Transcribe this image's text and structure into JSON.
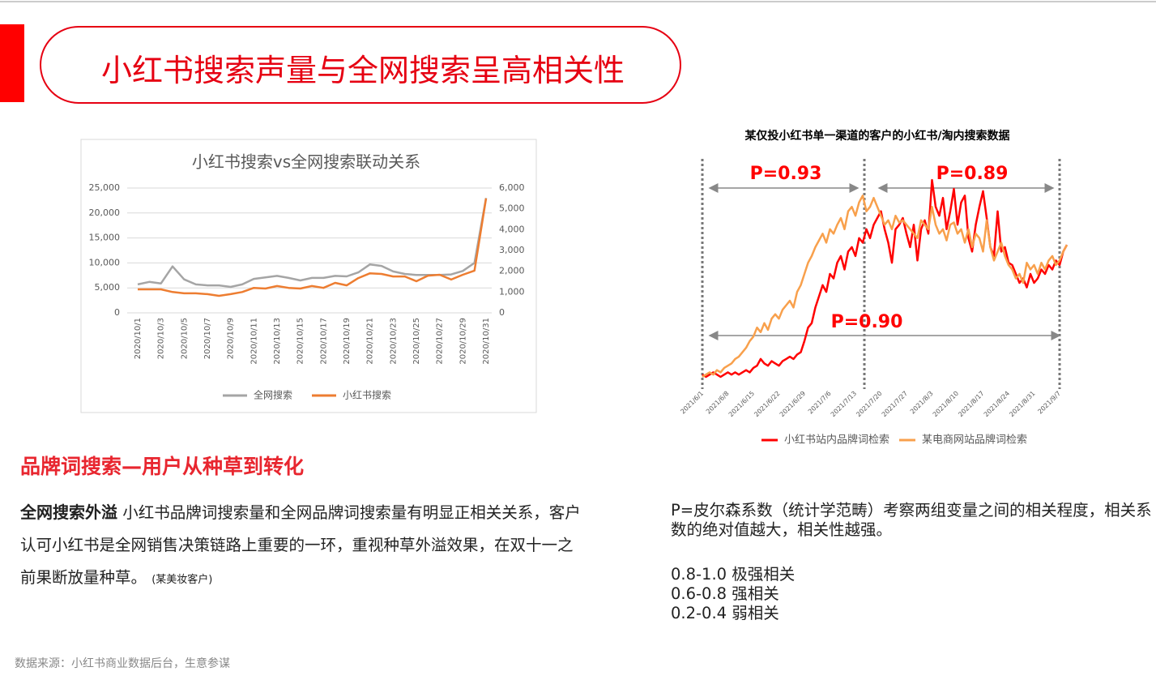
{
  "header": {
    "title": "小红书搜索声量与全网搜索呈高相关性"
  },
  "chart_data": [
    {
      "type": "line",
      "title": "小红书搜索vs全网搜索联动关系",
      "categories": [
        "2020/10/1",
        null,
        "2020/10/3",
        null,
        "2020/10/5",
        null,
        "2020/10/7",
        null,
        "2020/10/9",
        null,
        "2020/10/11",
        null,
        "2020/10/13",
        null,
        "2020/10/15",
        null,
        "2020/10/17",
        null,
        "2020/10/19",
        null,
        "2020/10/21",
        null,
        "2020/10/23",
        null,
        "2020/10/25",
        null,
        "2020/10/27",
        null,
        "2020/10/29",
        null,
        "2020/10/31"
      ],
      "series": [
        {
          "name": "全网搜索",
          "color": "#a5a5a5",
          "values": [
            5700,
            6200,
            5900,
            9300,
            6700,
            5700,
            5500,
            5500,
            5200,
            5700,
            6800,
            7100,
            7400,
            7000,
            6500,
            7000,
            7000,
            7400,
            7300,
            8100,
            9700,
            9400,
            8300,
            7800,
            7600,
            7600,
            7600,
            7700,
            8400,
            10000,
            23000
          ]
        },
        {
          "name": "小红书搜索",
          "color": "#ed7d31",
          "axis": "y2",
          "values": [
            1130,
            1130,
            1130,
            1000,
            940,
            940,
            900,
            820,
            900,
            1000,
            1200,
            1170,
            1290,
            1200,
            1170,
            1290,
            1200,
            1440,
            1320,
            1670,
            1900,
            1870,
            1750,
            1750,
            1520,
            1790,
            1830,
            1600,
            1830,
            2030,
            5500
          ]
        }
      ],
      "ylim": [
        0,
        25000
      ],
      "yticks": [
        0,
        {
          "value": 5000,
          "label": "5,000"
        },
        {
          "value": 10000,
          "label": "10,000"
        },
        {
          "value": 15000,
          "label": "15,000"
        },
        {
          "value": 20000,
          "label": "20,000"
        },
        {
          "value": 25000,
          "label": "25,000"
        }
      ],
      "y2lim": [
        0,
        6000
      ],
      "y2ticks": [
        0,
        {
          "value": 1000,
          "label": "1,000"
        },
        {
          "value": 2000,
          "label": "2,000"
        },
        {
          "value": 3000,
          "label": "3,000"
        },
        {
          "value": 4000,
          "label": "4,000"
        },
        {
          "value": 5000,
          "label": "5,000"
        },
        {
          "value": 6000,
          "label": "6,000"
        }
      ],
      "grid": true,
      "legend": "bottom"
    },
    {
      "type": "line",
      "title": "某仅投小红书单一渠道的客户的小红书/淘内搜索数据",
      "categories": [
        "2021/6/1",
        null,
        null,
        null,
        null,
        null,
        null,
        "2021/6/8",
        null,
        null,
        null,
        null,
        null,
        null,
        "2021/6/15",
        null,
        null,
        null,
        null,
        null,
        null,
        "2021/6/22",
        null,
        null,
        null,
        null,
        null,
        null,
        "2021/6/29",
        null,
        null,
        null,
        null,
        null,
        null,
        "2021/7/6",
        null,
        null,
        null,
        null,
        null,
        null,
        "2021/7/13",
        null,
        null,
        null,
        null,
        null,
        null,
        "2021/7/20",
        null,
        null,
        null,
        null,
        null,
        null,
        "2021/7/27",
        null,
        null,
        null,
        null,
        null,
        null,
        "2021/8/3",
        null,
        null,
        null,
        null,
        null,
        null,
        "2021/8/10",
        null,
        null,
        null,
        null,
        null,
        null,
        "2021/8/17",
        null,
        null,
        null,
        null,
        null,
        null,
        "2021/8/24",
        null,
        null,
        null,
        null,
        null,
        null,
        "2021/8/31",
        null,
        null,
        null,
        null,
        null,
        null,
        "2021/9/7",
        null,
        null
      ],
      "series": [
        {
          "name": "小红书站内品牌词检索",
          "color": "#ff0000",
          "values": [
            5,
            4,
            5,
            6,
            5,
            4,
            5,
            6,
            5,
            6,
            5,
            6,
            7,
            6,
            8,
            9,
            12,
            10,
            9,
            11,
            10,
            9,
            11,
            12,
            13,
            12,
            14,
            15,
            20,
            26,
            28,
            35,
            40,
            45,
            42,
            50,
            48,
            55,
            58,
            52,
            60,
            62,
            58,
            66,
            64,
            70,
            66,
            72,
            75,
            78,
            70,
            64,
            55,
            70,
            72,
            75,
            68,
            62,
            72,
            56,
            70,
            74,
            68,
            92,
            80,
            76,
            84,
            70,
            78,
            88,
            72,
            82,
            85,
            66,
            60,
            72,
            80,
            87,
            75,
            62,
            58,
            78,
            60,
            62,
            55,
            54,
            50,
            46,
            48,
            44,
            50,
            46,
            48,
            52,
            50,
            54,
            52,
            56,
            54,
            60,
            63
          ]
        },
        {
          "name": "某电商网站品牌词检索",
          "color": "#f8a04c",
          "values": [
            4,
            5,
            6,
            5,
            7,
            6,
            8,
            9,
            10,
            12,
            13,
            15,
            17,
            20,
            22,
            26,
            24,
            28,
            25,
            30,
            32,
            30,
            34,
            36,
            38,
            35,
            42,
            45,
            50,
            55,
            58,
            62,
            65,
            68,
            64,
            70,
            68,
            72,
            75,
            70,
            78,
            80,
            76,
            82,
            85,
            78,
            80,
            84,
            80,
            76,
            72,
            74,
            70,
            76,
            73,
            74,
            72,
            70,
            68,
            66,
            74,
            72,
            70,
            80,
            72,
            68,
            70,
            65,
            72,
            73,
            68,
            70,
            64,
            70,
            62,
            68,
            66,
            60,
            74,
            62,
            56,
            60,
            64,
            58,
            54,
            52,
            48,
            50,
            46,
            55,
            52,
            54,
            50,
            55,
            52,
            56,
            58,
            54,
            56,
            60,
            63
          ]
        }
      ],
      "ylim": [
        0,
        100
      ],
      "annotations": [
        "P=0.93",
        "P=0.89",
        "P=0.90"
      ],
      "legend": "bottom"
    }
  ],
  "section": {
    "heading": "品牌词搜索—用户从种草到转化"
  },
  "body": {
    "lead": "全网搜索外溢",
    "text": "小红书品牌词搜索量和全网品牌词搜索量有明显正相关关系，客户认可小红书是全网销售决策链路上重要的一环，重视种草外溢效果，在双十一之前果断放量种草。",
    "note": "(某美妆客户)"
  },
  "explain": {
    "text": "P=皮尔森系数（统计学范畴）考察两组变量之间的相关程度，相关系数的绝对值越大，相关性越强。",
    "levels": [
      "0.8-1.0 极强相关",
      "0.6-0.8 强相关",
      "0.2-0.4 弱相关"
    ]
  },
  "footer": {
    "source": "数据来源：小红书商业数据后台，生意参谋"
  }
}
